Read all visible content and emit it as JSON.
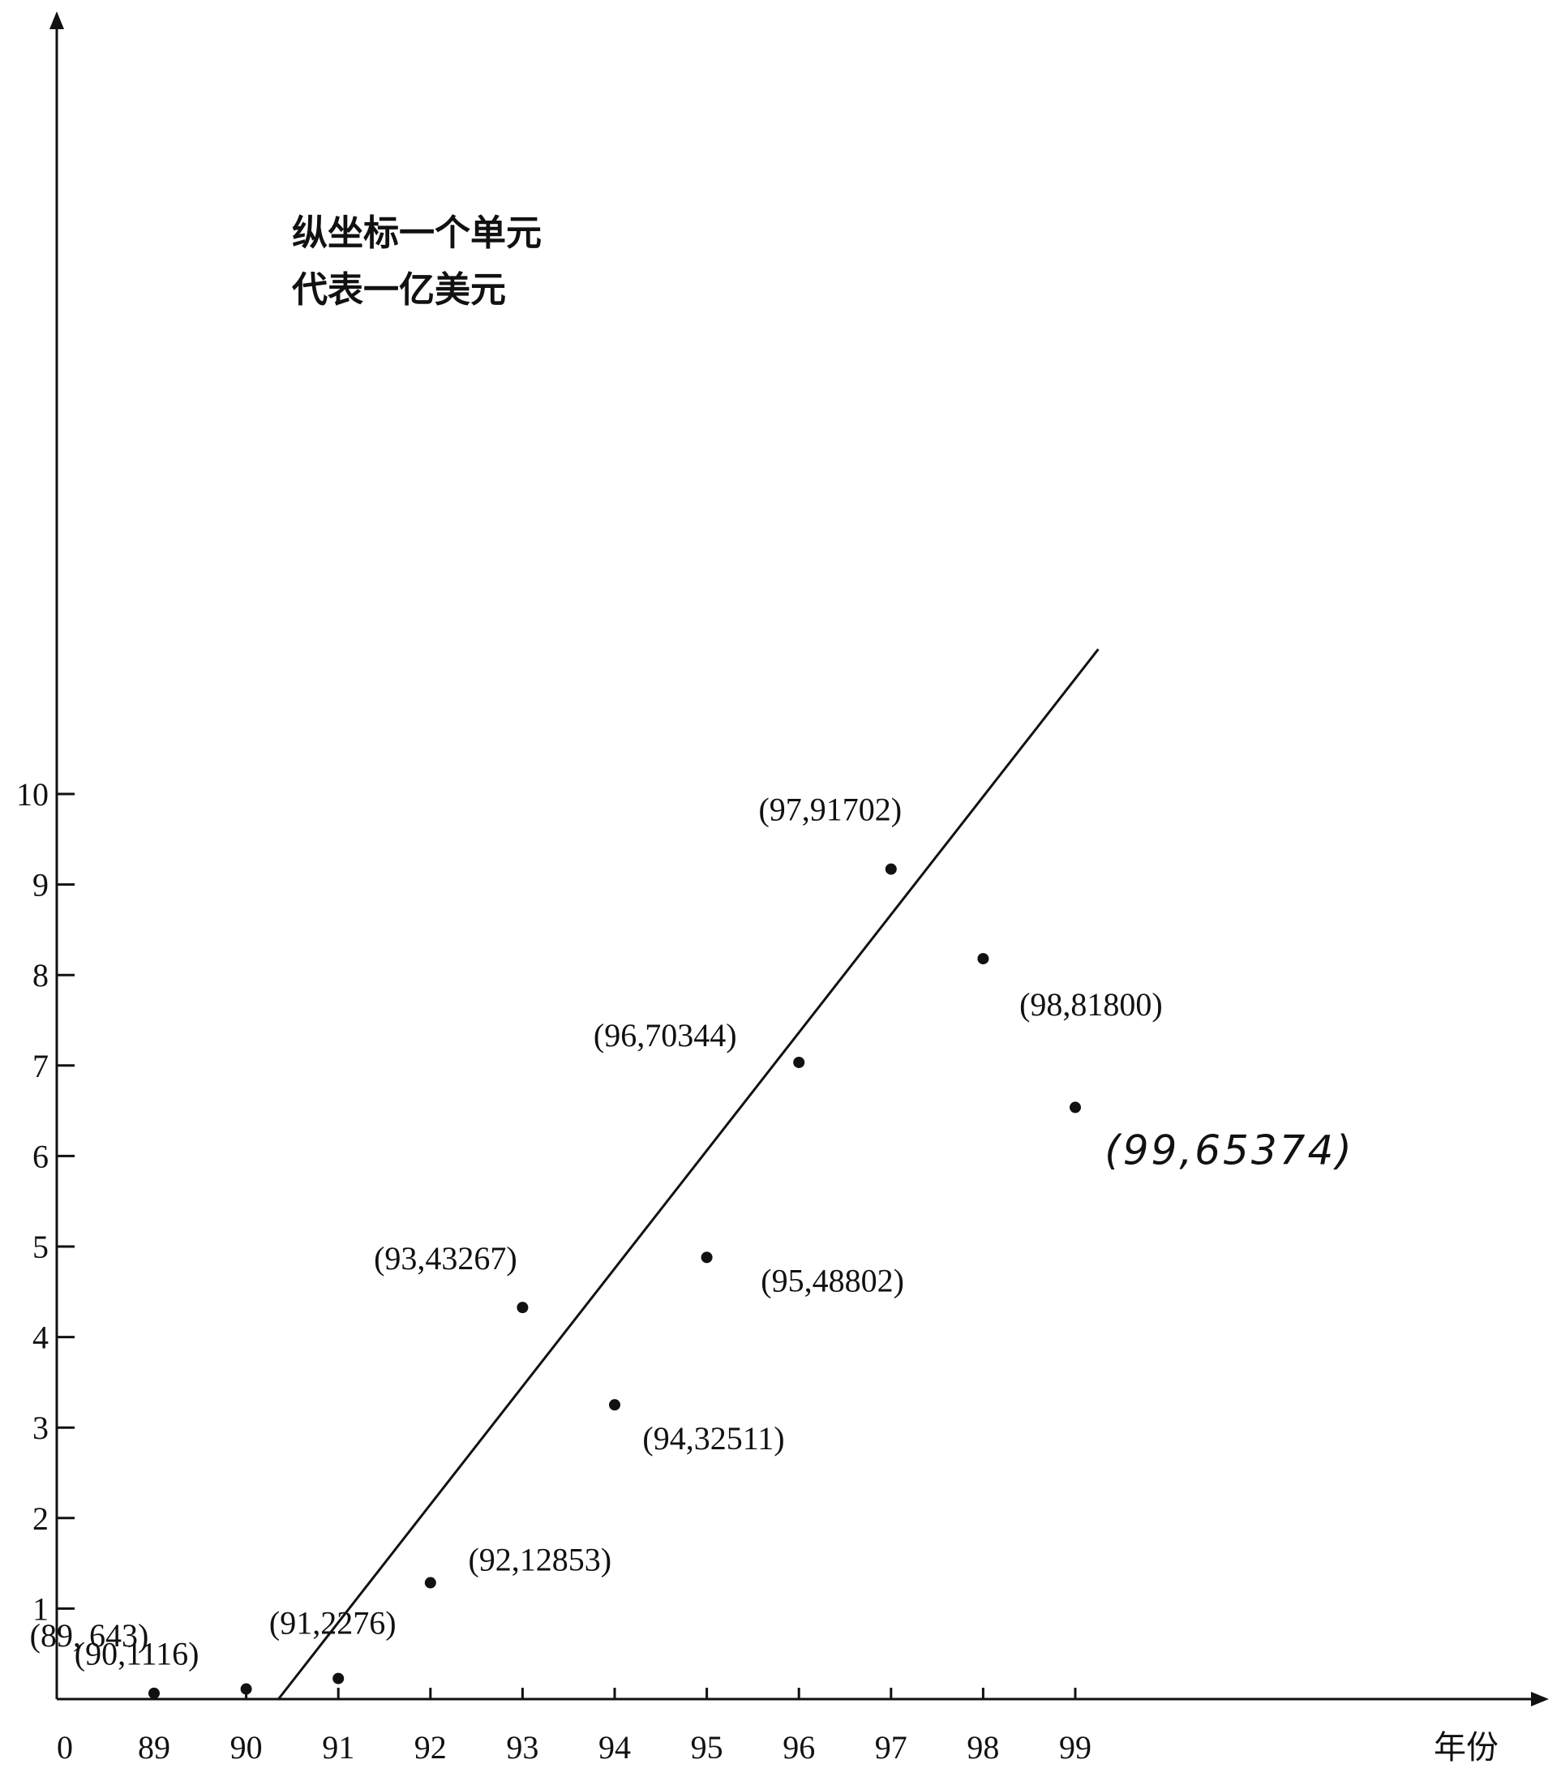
{
  "chart_data": {
    "type": "scatter",
    "title": "",
    "xlabel": "年份",
    "ylabel": "",
    "origin_label": "0",
    "note_lines": [
      "纵坐标一个单元",
      "代表一亿美元"
    ],
    "x_ticks": [
      "89",
      "90",
      "91",
      "92",
      "93",
      "94",
      "95",
      "96",
      "97",
      "98",
      "99"
    ],
    "y_ticks": [
      "1",
      "2",
      "3",
      "4",
      "5",
      "6",
      "7",
      "8",
      "9",
      "10"
    ],
    "points": [
      {
        "x": 89,
        "y": 643,
        "label": "(89, 643)"
      },
      {
        "x": 90,
        "y": 1116,
        "label": "(90,1116)"
      },
      {
        "x": 91,
        "y": 2276,
        "label": "(91,2276)"
      },
      {
        "x": 92,
        "y": 12853,
        "label": "(92,12853)"
      },
      {
        "x": 93,
        "y": 43267,
        "label": "(93,43267)"
      },
      {
        "x": 94,
        "y": 32511,
        "label": "(94,32511)"
      },
      {
        "x": 95,
        "y": 48802,
        "label": "(95,48802)"
      },
      {
        "x": 96,
        "y": 70344,
        "label": "(96,70344)"
      },
      {
        "x": 97,
        "y": 91702,
        "label": "(97,91702)"
      },
      {
        "x": 98,
        "y": 81800,
        "label": "(98,81800)"
      },
      {
        "x": 99,
        "y": 65374,
        "label": "(99,65374)"
      }
    ],
    "trend_line": {
      "from": {
        "x": 90.35,
        "y": 0
      },
      "to": {
        "x": 99.25,
        "y": 11.6
      }
    },
    "grid": false,
    "legend": "none"
  }
}
